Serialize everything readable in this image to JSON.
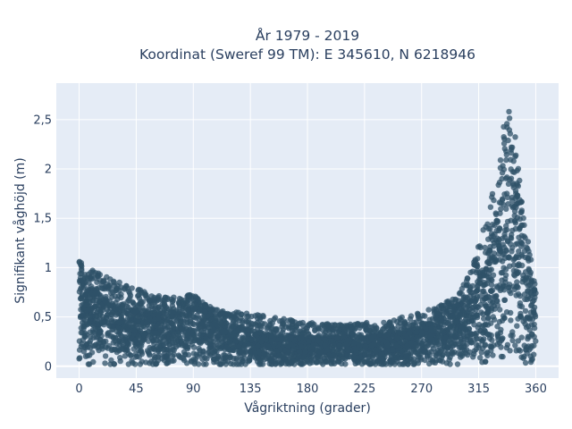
{
  "chart_data": {
    "type": "scatter",
    "title_line1": "År 1979 - 2019",
    "title_line2": "Koordinat (Sweref 99 TM): E 345610, N 6218946",
    "xlabel": "Vågriktning (grader)",
    "ylabel": "Signifikant våghöjd (m)",
    "xlim": [
      -18,
      378
    ],
    "ylim": [
      -0.12,
      2.87
    ],
    "x_ticks": [
      0,
      45,
      90,
      135,
      180,
      225,
      270,
      315,
      360
    ],
    "x_tick_labels": [
      "0",
      "45",
      "90",
      "135",
      "180",
      "225",
      "270",
      "315",
      "360"
    ],
    "y_ticks": [
      0,
      0.5,
      1,
      1.5,
      2,
      2.5
    ],
    "y_tick_labels": [
      "0",
      "0,5",
      "1",
      "1,5",
      "2",
      "2,5"
    ],
    "grid": true,
    "plot_background": "#e5ecf6",
    "marker_color": "#2f5168",
    "envelope": {
      "x": [
        0,
        10,
        20,
        30,
        45,
        60,
        75,
        90,
        100,
        110,
        120,
        135,
        150,
        165,
        180,
        195,
        210,
        225,
        240,
        255,
        270,
        285,
        300,
        310,
        320,
        330,
        335,
        340,
        345,
        350,
        355,
        360
      ],
      "y_upper": [
        0.9,
        0.78,
        0.7,
        0.65,
        0.58,
        0.55,
        0.58,
        0.62,
        0.55,
        0.48,
        0.42,
        0.37,
        0.32,
        0.3,
        0.29,
        0.3,
        0.3,
        0.31,
        0.32,
        0.36,
        0.4,
        0.48,
        0.62,
        0.8,
        1.05,
        1.5,
        1.9,
        2.3,
        1.8,
        1.35,
        1.0,
        0.8
      ],
      "y_outer": [
        1.1,
        0.98,
        0.92,
        0.86,
        0.8,
        0.72,
        0.7,
        0.73,
        0.62,
        0.57,
        0.55,
        0.55,
        0.5,
        0.48,
        0.45,
        0.43,
        0.42,
        0.45,
        0.45,
        0.5,
        0.55,
        0.62,
        0.75,
        1.0,
        1.45,
        2.0,
        2.5,
        2.75,
        2.2,
        1.55,
        1.2,
        0.8
      ]
    }
  }
}
